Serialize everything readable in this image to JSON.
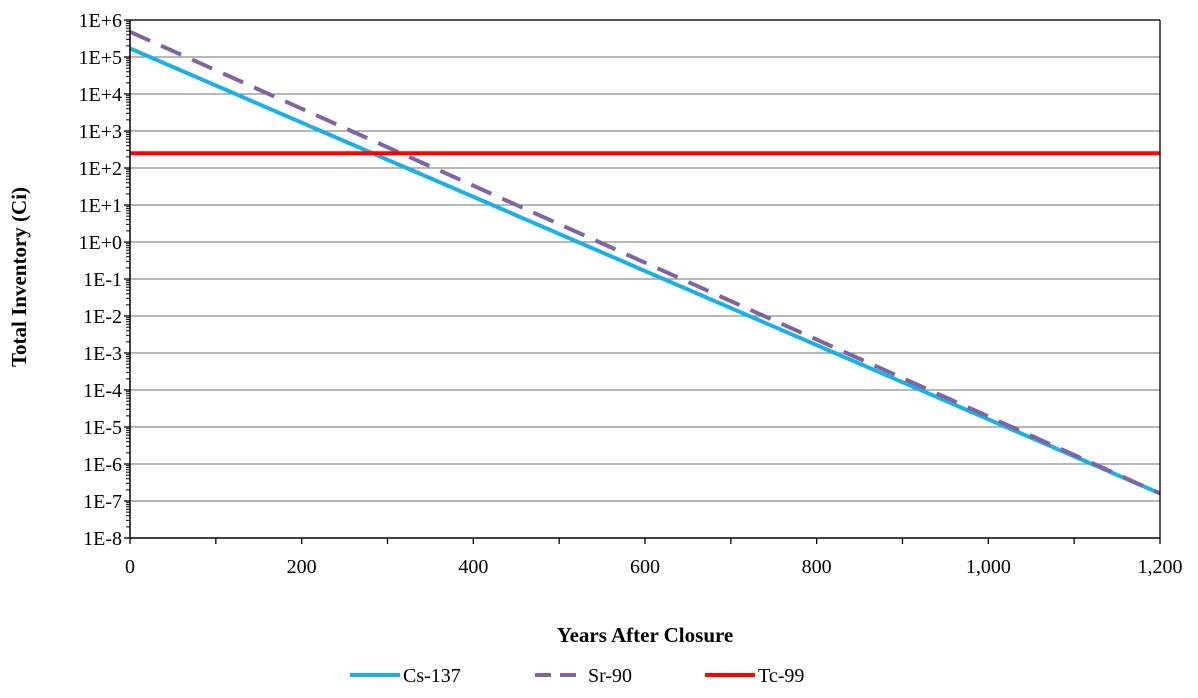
{
  "chart_data": {
    "type": "line",
    "xlabel": "Years After Closure",
    "ylabel": "Total Inventory (Ci)",
    "x_scale": "linear",
    "y_scale": "log10",
    "xlim": [
      0,
      1200
    ],
    "ylim_exponent": [
      -8,
      6
    ],
    "x_ticks": [
      0,
      200,
      400,
      600,
      800,
      1000,
      1200
    ],
    "x_tick_labels": [
      "0",
      "200",
      "400",
      "600",
      "800",
      "1,000",
      "1,200"
    ],
    "y_tick_labels": [
      "1E-8",
      "1E-7",
      "1E-6",
      "1E-5",
      "1E-4",
      "1E-3",
      "1E-2",
      "1E-1",
      "1E+0",
      "1E+1",
      "1E+2",
      "1E+3",
      "1E+4",
      "1E+5",
      "1E+6"
    ],
    "grid": "horizontal",
    "legend_position": "bottom-center",
    "series": [
      {
        "name": "Cs-137",
        "color": "#1ab0e6",
        "dash": "solid",
        "x": [
          0,
          1200
        ],
        "y": [
          170000,
          1.6e-07
        ]
      },
      {
        "name": "Sr-90",
        "color": "#8064a2",
        "dash": "dashed",
        "x": [
          0,
          1200
        ],
        "y": [
          480000,
          1.6e-07
        ]
      },
      {
        "name": "Tc-99",
        "color": "#ff0000",
        "dash": "solid",
        "x": [
          0,
          1200
        ],
        "y": [
          250,
          250
        ]
      }
    ]
  }
}
